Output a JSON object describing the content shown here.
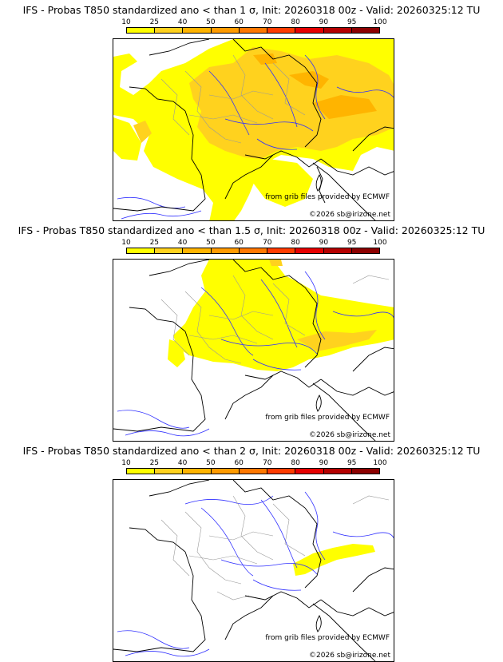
{
  "colorbar": {
    "ticks": [
      "10",
      "25",
      "40",
      "50",
      "60",
      "70",
      "80",
      "90",
      "95",
      "100"
    ],
    "colors": [
      "#ffff00",
      "#ffd21e",
      "#ffb400",
      "#ff9b00",
      "#ff7800",
      "#ff3c00",
      "#e60000",
      "#b40000",
      "#8c0000",
      "#5a0000"
    ]
  },
  "panels": [
    {
      "title": "IFS - Probas T850  standardized ano < than 1 σ, Init: 20260318 00z - Valid: 20260325:12 TU",
      "credit": "from grib files provided by ECMWF",
      "copyright": "©2026 sb@irizone.net"
    },
    {
      "title": "IFS - Probas T850  standardized ano < than 1.5 σ, Init: 20260318 00z - Valid: 20260325:12 TU",
      "credit": "from grib files provided by ECMWF",
      "copyright": "©2026 sb@irizone.net"
    },
    {
      "title": "IFS - Probas T850  standardized ano < than 2 σ, Init: 20260318 00z - Valid: 20260325:12 TU",
      "credit": "from grib files provided by ECMWF",
      "copyright": "©2026 sb@irizone.net"
    }
  ]
}
